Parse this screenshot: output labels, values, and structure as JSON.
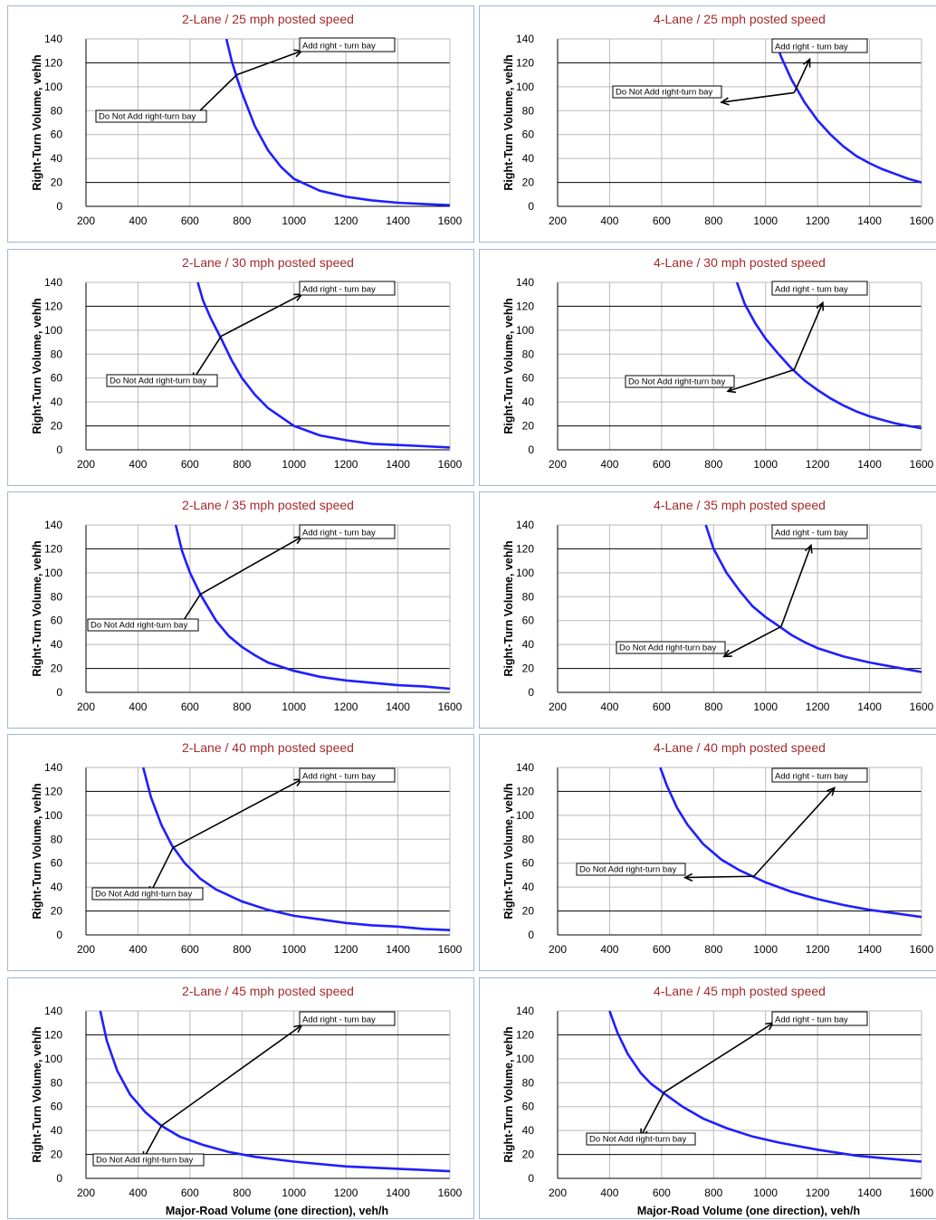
{
  "chart_data": [
    {
      "type": "line",
      "title": "2-Lane / 25 mph posted speed",
      "xlabel": "",
      "ylabel": "Right-Turn Volume, veh/h",
      "xlim": [
        200,
        1600
      ],
      "ylim": [
        0,
        140
      ],
      "xticks": [
        "200",
        "400",
        "600",
        "800",
        "1000",
        "1200",
        "1400",
        "1600"
      ],
      "yticks": [
        "0",
        "20",
        "40",
        "60",
        "80",
        "100",
        "120",
        "140"
      ],
      "grid": "horizontal lines at 20 and 120 heavy, vertical light",
      "series": [
        {
          "x": [
            740,
            760,
            780,
            800,
            850,
            900,
            950,
            1000,
            1100,
            1200,
            1300,
            1400,
            1500,
            1600
          ],
          "values": [
            140,
            122,
            108,
            95,
            67,
            47,
            33,
            23,
            13,
            8,
            5,
            3,
            2,
            1
          ]
        }
      ],
      "annotations": [
        {
          "text": "Add right - turn bay",
          "from": [
            780,
            110
          ],
          "to": [
            1030,
            130
          ]
        },
        {
          "text": "Do Not Add right-turn bay",
          "from": [
            780,
            110
          ],
          "to": [
            610,
            74
          ]
        }
      ]
    },
    {
      "type": "line",
      "title": "4-Lane / 25 mph posted speed",
      "xlabel": "",
      "ylabel": "Right-Turn Volume, veh/h",
      "xlim": [
        200,
        1600
      ],
      "ylim": [
        0,
        140
      ],
      "xticks": [
        "200",
        "400",
        "600",
        "800",
        "1000",
        "1200",
        "1400",
        "1600"
      ],
      "yticks": [
        "0",
        "20",
        "40",
        "60",
        "80",
        "100",
        "120",
        "140"
      ],
      "grid": "horizontal lines at 20 and 120 heavy, vertical light",
      "series": [
        {
          "x": [
            1035,
            1060,
            1100,
            1150,
            1200,
            1250,
            1300,
            1350,
            1400,
            1450,
            1500,
            1550,
            1600
          ],
          "values": [
            140,
            125,
            106,
            87,
            72,
            60,
            50,
            42,
            36,
            31,
            27,
            23,
            20
          ]
        }
      ],
      "annotations": [
        {
          "text": "Add right - turn bay",
          "from": [
            1110,
            95
          ],
          "to": [
            1170,
            123
          ]
        },
        {
          "text": "Do Not Add right-turn bay",
          "from": [
            1110,
            95
          ],
          "to": [
            830,
            87
          ]
        }
      ]
    },
    {
      "type": "line",
      "title": "2-Lane / 30 mph posted speed",
      "xlabel": "",
      "ylabel": "Right-Turn Volume, veh/h",
      "xlim": [
        200,
        1600
      ],
      "ylim": [
        0,
        140
      ],
      "xticks": [
        "200",
        "400",
        "600",
        "800",
        "1000",
        "1200",
        "1400",
        "1600"
      ],
      "yticks": [
        "0",
        "20",
        "40",
        "60",
        "80",
        "100",
        "120",
        "140"
      ],
      "grid": "horizontal lines at 20 and 120 heavy, vertical light",
      "series": [
        {
          "x": [
            630,
            650,
            680,
            720,
            760,
            800,
            850,
            900,
            1000,
            1100,
            1200,
            1300,
            1400,
            1500,
            1600
          ],
          "values": [
            140,
            125,
            110,
            93,
            75,
            60,
            46,
            35,
            20,
            12,
            8,
            5,
            4,
            3,
            2
          ]
        }
      ],
      "annotations": [
        {
          "text": "Add right - turn bay",
          "from": [
            720,
            95
          ],
          "to": [
            1030,
            130
          ]
        },
        {
          "text": "Do Not Add right-turn bay",
          "from": [
            720,
            95
          ],
          "to": [
            610,
            58
          ]
        }
      ]
    },
    {
      "type": "line",
      "title": "4-Lane / 30 mph posted speed",
      "xlabel": "",
      "ylabel": "Right-Turn Volume, veh/h",
      "xlim": [
        200,
        1600
      ],
      "ylim": [
        0,
        140
      ],
      "xticks": [
        "200",
        "400",
        "600",
        "800",
        "1000",
        "1200",
        "1400",
        "1600"
      ],
      "yticks": [
        "0",
        "20",
        "40",
        "60",
        "80",
        "100",
        "120",
        "140"
      ],
      "grid": "horizontal lines at 20 and 120 heavy, vertical light",
      "series": [
        {
          "x": [
            890,
            920,
            960,
            1000,
            1050,
            1100,
            1150,
            1200,
            1250,
            1300,
            1350,
            1400,
            1450,
            1500,
            1550,
            1600
          ],
          "values": [
            140,
            122,
            106,
            93,
            80,
            68,
            58,
            50,
            43,
            37,
            32,
            28,
            25,
            22,
            20,
            18
          ]
        }
      ],
      "annotations": [
        {
          "text": "Add right - turn bay",
          "from": [
            1110,
            67
          ],
          "to": [
            1220,
            123
          ]
        },
        {
          "text": "Do Not Add right-turn bay",
          "from": [
            1110,
            67
          ],
          "to": [
            855,
            49
          ]
        }
      ]
    },
    {
      "type": "line",
      "title": "2-Lane / 35 mph posted speed",
      "xlabel": "",
      "ylabel": "Right-Turn Volume, veh/h",
      "xlim": [
        200,
        1600
      ],
      "ylim": [
        0,
        140
      ],
      "xticks": [
        "200",
        "400",
        "600",
        "800",
        "1000",
        "1200",
        "1400",
        "1600"
      ],
      "yticks": [
        "0",
        "20",
        "40",
        "60",
        "80",
        "100",
        "120",
        "140"
      ],
      "grid": "horizontal lines at 20 and 120 heavy, vertical light",
      "series": [
        {
          "x": [
            545,
            570,
            600,
            640,
            700,
            750,
            800,
            850,
            900,
            1000,
            1100,
            1200,
            1300,
            1400,
            1500,
            1600
          ],
          "values": [
            140,
            118,
            100,
            82,
            60,
            47,
            38,
            31,
            25,
            18,
            13,
            10,
            8,
            6,
            5,
            3
          ]
        }
      ],
      "annotations": [
        {
          "text": "Add right - turn bay",
          "from": [
            640,
            82
          ],
          "to": [
            1030,
            130
          ]
        },
        {
          "text": "Do Not Add right-turn bay",
          "from": [
            640,
            82
          ],
          "to": [
            560,
            55
          ]
        }
      ]
    },
    {
      "type": "line",
      "title": "4-Lane / 35 mph posted speed",
      "xlabel": "",
      "ylabel": "Right-Turn Volume, veh/h",
      "xlim": [
        200,
        1600
      ],
      "ylim": [
        0,
        140
      ],
      "xticks": [
        "200",
        "400",
        "600",
        "800",
        "1000",
        "1200",
        "1400",
        "1600"
      ],
      "yticks": [
        "0",
        "20",
        "40",
        "60",
        "80",
        "100",
        "120",
        "140"
      ],
      "grid": "horizontal lines at 20 and 120 heavy, vertical light",
      "series": [
        {
          "x": [
            770,
            800,
            850,
            900,
            950,
            1000,
            1060,
            1100,
            1150,
            1200,
            1300,
            1400,
            1500,
            1600
          ],
          "values": [
            140,
            120,
            100,
            85,
            72,
            63,
            54,
            48,
            42,
            37,
            30,
            25,
            21,
            17
          ]
        }
      ],
      "annotations": [
        {
          "text": "Add right - turn bay",
          "from": [
            1060,
            55
          ],
          "to": [
            1175,
            123
          ]
        },
        {
          "text": "Do Not Add right-turn bay",
          "from": [
            1060,
            55
          ],
          "to": [
            840,
            30
          ]
        }
      ]
    },
    {
      "type": "line",
      "title": "2-Lane / 40 mph posted speed",
      "xlabel": "",
      "ylabel": "Right-Turn Volume, veh/h",
      "xlim": [
        200,
        1600
      ],
      "ylim": [
        0,
        140
      ],
      "xticks": [
        "200",
        "400",
        "600",
        "800",
        "1000",
        "1200",
        "1400",
        "1600"
      ],
      "yticks": [
        "0",
        "20",
        "40",
        "60",
        "80",
        "100",
        "120",
        "140"
      ],
      "grid": "horizontal lines at 20 and 120 heavy, vertical light",
      "series": [
        {
          "x": [
            420,
            450,
            490,
            530,
            580,
            640,
            700,
            800,
            900,
            1000,
            1100,
            1200,
            1300,
            1400,
            1500,
            1600
          ],
          "values": [
            140,
            115,
            92,
            75,
            60,
            47,
            38,
            28,
            21,
            16,
            13,
            10,
            8,
            7,
            5,
            4
          ]
        }
      ],
      "annotations": [
        {
          "text": "Add right - turn bay",
          "from": [
            535,
            73
          ],
          "to": [
            1030,
            130
          ]
        },
        {
          "text": "Do Not Add right-turn bay",
          "from": [
            535,
            73
          ],
          "to": [
            445,
            34
          ]
        }
      ]
    },
    {
      "type": "line",
      "title": "4-Lane / 40 mph posted speed",
      "xlabel": "",
      "ylabel": "Right-Turn Volume, veh/h",
      "xlim": [
        200,
        1600
      ],
      "ylim": [
        0,
        140
      ],
      "xticks": [
        "200",
        "400",
        "600",
        "800",
        "1000",
        "1200",
        "1400",
        "1600"
      ],
      "yticks": [
        "0",
        "20",
        "40",
        "60",
        "80",
        "100",
        "120",
        "140"
      ],
      "grid": "horizontal lines at 20 and 120 heavy, vertical light",
      "series": [
        {
          "x": [
            595,
            620,
            660,
            700,
            760,
            830,
            900,
            950,
            1000,
            1100,
            1200,
            1300,
            1400,
            1500,
            1600
          ],
          "values": [
            140,
            125,
            106,
            92,
            76,
            63,
            54,
            49,
            44,
            36,
            30,
            25,
            21,
            18,
            15
          ]
        }
      ],
      "annotations": [
        {
          "text": "Add right - turn bay",
          "from": [
            955,
            49
          ],
          "to": [
            1265,
            123
          ]
        },
        {
          "text": "Do Not Add right-turn bay",
          "from": [
            955,
            49
          ],
          "to": [
            690,
            48
          ]
        }
      ]
    },
    {
      "type": "line",
      "title": "2-Lane / 45 mph posted speed",
      "xlabel": "Major-Road Volume (one direction), veh/h",
      "ylabel": "Right-Turn Volume, veh/h",
      "xlim": [
        200,
        1600
      ],
      "ylim": [
        0,
        140
      ],
      "xticks": [
        "200",
        "400",
        "600",
        "800",
        "1000",
        "1200",
        "1400",
        "1600"
      ],
      "yticks": [
        "0",
        "20",
        "40",
        "60",
        "80",
        "100",
        "120",
        "140"
      ],
      "grid": "horizontal lines at 20 and 120 heavy, vertical light",
      "series": [
        {
          "x": [
            255,
            280,
            320,
            370,
            430,
            490,
            560,
            650,
            750,
            850,
            1000,
            1200,
            1400,
            1600
          ],
          "values": [
            140,
            115,
            90,
            70,
            55,
            44,
            35,
            28,
            22,
            18,
            14,
            10,
            8,
            6
          ]
        }
      ],
      "annotations": [
        {
          "text": "Add right - turn bay",
          "from": [
            490,
            44
          ],
          "to": [
            1030,
            128
          ]
        },
        {
          "text": "Do Not Add right-turn bay",
          "from": [
            490,
            44
          ],
          "to": [
            420,
            16
          ]
        }
      ]
    },
    {
      "type": "line",
      "title": "4-Lane / 45 mph posted speed",
      "xlabel": "Major-Road Volume (one direction), veh/h",
      "ylabel": "Right-Turn Volume, veh/h",
      "xlim": [
        200,
        1600
      ],
      "ylim": [
        0,
        140
      ],
      "xticks": [
        "200",
        "400",
        "600",
        "800",
        "1000",
        "1200",
        "1400",
        "1600"
      ],
      "yticks": [
        "0",
        "20",
        "40",
        "60",
        "80",
        "100",
        "120",
        "140"
      ],
      "grid": "horizontal lines at 20 and 120 heavy, vertical light",
      "series": [
        {
          "x": [
            400,
            430,
            470,
            520,
            560,
            610,
            680,
            760,
            850,
            950,
            1050,
            1200,
            1350,
            1500,
            1600
          ],
          "values": [
            140,
            122,
            104,
            88,
            79,
            71,
            60,
            50,
            42,
            35,
            30,
            24,
            19,
            16,
            14
          ]
        }
      ],
      "annotations": [
        {
          "text": "Add right - turn bay",
          "from": [
            610,
            72
          ],
          "to": [
            1030,
            130
          ]
        },
        {
          "text": "Do Not Add right-turn bay",
          "from": [
            610,
            72
          ],
          "to": [
            520,
            35
          ]
        }
      ]
    }
  ]
}
